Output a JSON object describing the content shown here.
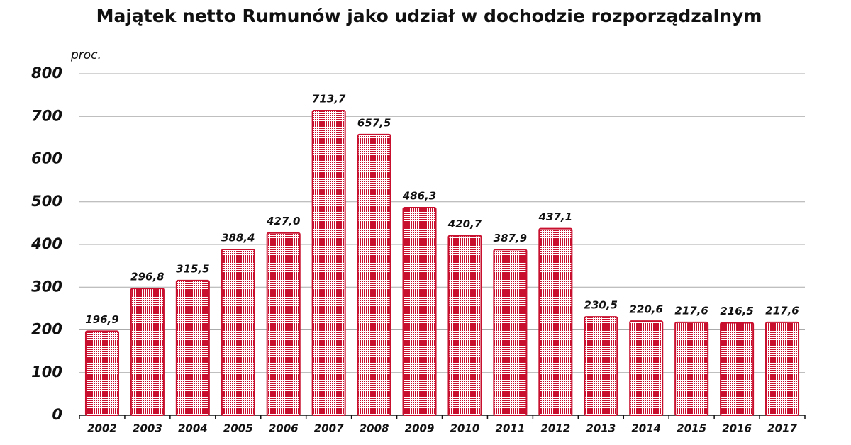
{
  "chart_data": {
    "type": "bar",
    "title": "Majątek netto Rumunów  jako udział w dochodzie rozporządzalnym",
    "y_label": "proc.",
    "categories": [
      "2002",
      "2003",
      "2004",
      "2005",
      "2006",
      "2007",
      "2008",
      "2009",
      "2010",
      "2011",
      "2012",
      "2013",
      "2014",
      "2015",
      "2016",
      "2017"
    ],
    "values": [
      196.9,
      296.8,
      315.5,
      388.4,
      427.0,
      713.7,
      657.5,
      486.3,
      420.7,
      387.9,
      437.1,
      230.5,
      220.6,
      217.6,
      216.5,
      217.6
    ],
    "value_labels": [
      "196,9",
      "296,8",
      "315,5",
      "388,4",
      "427,0",
      "713,7",
      "657,5",
      "486,3",
      "420,7",
      "387,9",
      "437,1",
      "230,5",
      "220,6",
      "217,6",
      "216,5",
      "217,6"
    ],
    "color": "#c8102e",
    "ylim": [
      0,
      800
    ],
    "yticks": [
      0,
      100,
      200,
      300,
      400,
      500,
      600,
      700,
      800
    ],
    "grid": true
  }
}
